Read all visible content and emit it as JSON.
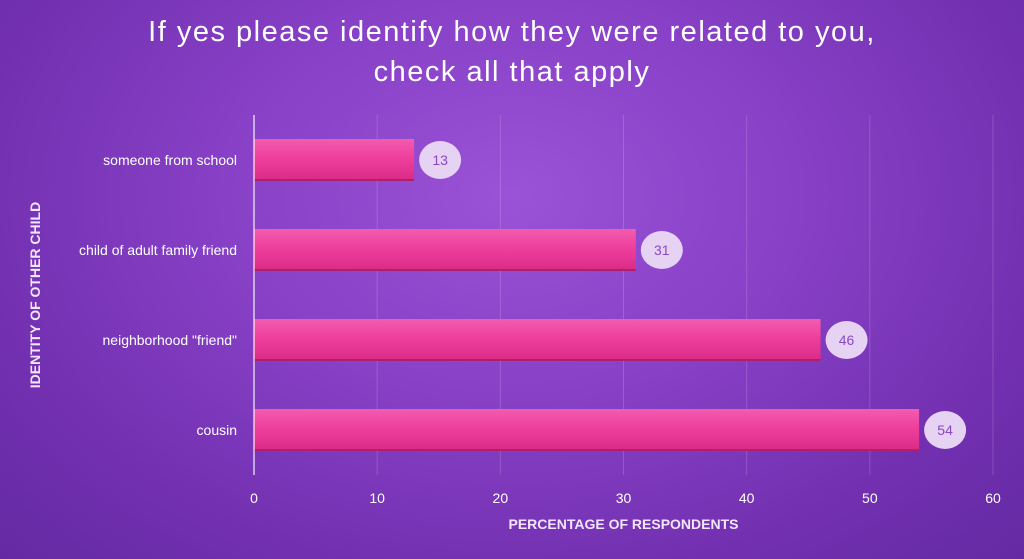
{
  "chart_data": {
    "type": "bar",
    "orientation": "horizontal",
    "title_lines": [
      "If yes please identify how they were related to you,",
      "check all that apply"
    ],
    "xlabel": "PERCENTAGE OF RESPONDENTS",
    "ylabel": "IDENTITY OF OTHER CHILD",
    "categories": [
      "someone from school",
      "child of adult family friend",
      "neighborhood \"friend\"",
      "cousin"
    ],
    "values": [
      13,
      31,
      46,
      54
    ],
    "xlim": [
      0,
      60
    ],
    "xticks": [
      0,
      10,
      20,
      30,
      40,
      50,
      60
    ],
    "grid": true,
    "legend": "none",
    "colors": {
      "bar_top": "#f25cae",
      "bar_mid": "#ee3f9c",
      "bar_bottom": "#d92b86",
      "label_bubble": "#e6d3f3",
      "label_text": "#8a48c4",
      "text": "#ffffff",
      "axis_title": "#f1e6fb"
    }
  }
}
